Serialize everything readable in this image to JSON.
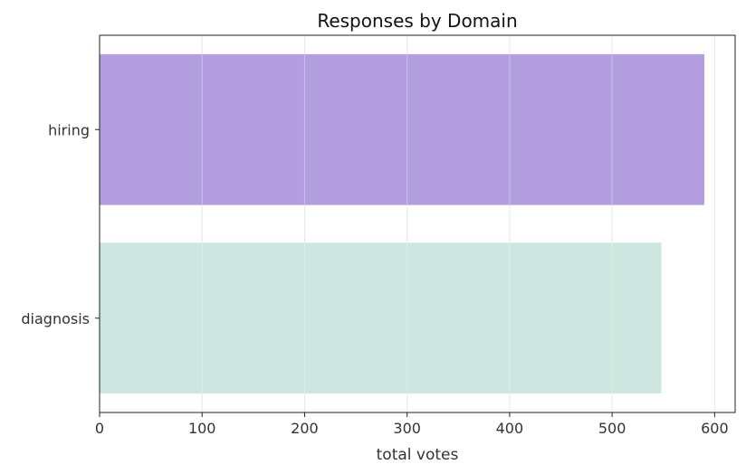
{
  "chart_data": {
    "type": "bar",
    "orientation": "horizontal",
    "title": "Responses by Domain",
    "xlabel": "total votes",
    "ylabel": "",
    "categories": [
      "hiring",
      "diagnosis"
    ],
    "values": [
      590,
      548
    ],
    "colors": [
      "#b39fe0",
      "#cde6df"
    ],
    "xlim": [
      0,
      620
    ],
    "xticks": [
      0,
      100,
      200,
      300,
      400,
      500,
      600
    ],
    "grid": true
  }
}
